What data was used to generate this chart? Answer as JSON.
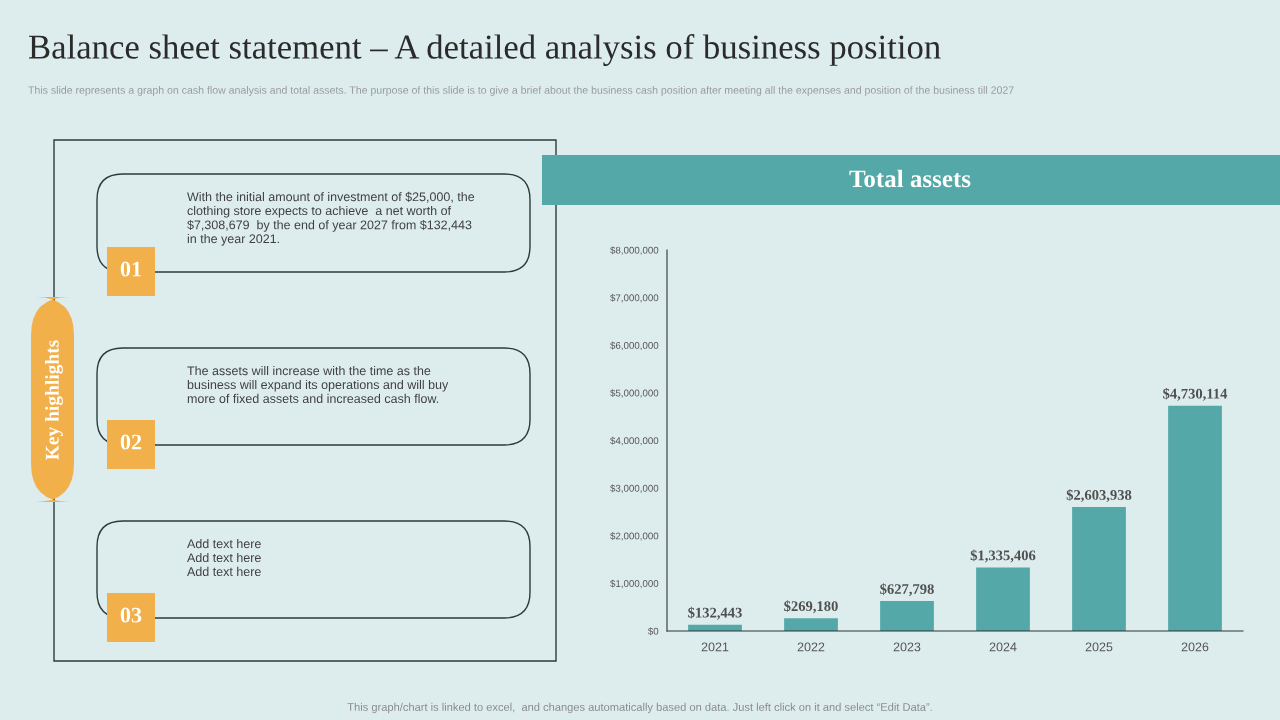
{
  "chart_data": [
    {
      "type": "other",
      "title": "Balance sheet statement – A detailed analysis of business position",
      "subtitle": "This slide represents a graph on cash flow analysis and total assets. The purpose of this slide is to give a brief about the business cash position after meeting all the expenses and position of the business till 2027",
      "annotations": [
        "Key highlights",
        "01",
        "With the initial amount of investment of $25,000, the\nclothing store expects to achieve  a net worth of\n$7,308,679  by the end of year 2027 from $132,443\nin the year 2021.",
        "02",
        "The assets will increase with the time as the\nbusiness will expand its operations and will buy\nmore of fixed assets and increased cash flow.",
        "03",
        "Add text here\nAdd text here\nAdd text here",
        "This graph/chart is linked to excel,  and changes automatically based on data. Just left click on it and select “Edit Data”."
      ]
    },
    {
      "type": "bar",
      "title": "Total assets",
      "categories": [
        "2021",
        "2022",
        "2023",
        "2024",
        "2025",
        "2026"
      ],
      "values": [
        132443,
        269180,
        627798,
        1335406,
        2603938,
        4730114
      ],
      "value_labels": [
        "$132,443",
        "$269,180",
        "$627,798",
        "$1,335,406",
        "$2,603,938",
        "$4,730,114"
      ],
      "color": "#55a8a8",
      "ylim": [
        0,
        8000000
      ],
      "yticks": [
        {
          "value": 0,
          "label": "$0"
        },
        {
          "value": 1000000,
          "label": "$1,000,000"
        },
        {
          "value": 2000000,
          "label": "$2,000,000"
        },
        {
          "value": 3000000,
          "label": "$3,000,000"
        },
        {
          "value": 4000000,
          "label": "$4,000,000"
        },
        {
          "value": 5000000,
          "label": "$5,000,000"
        },
        {
          "value": 6000000,
          "label": "$6,000,000"
        },
        {
          "value": 7000000,
          "label": "$7,000,000"
        },
        {
          "value": 8000000,
          "label": "$8,000,000"
        }
      ],
      "grid": false,
      "legend": false
    }
  ]
}
